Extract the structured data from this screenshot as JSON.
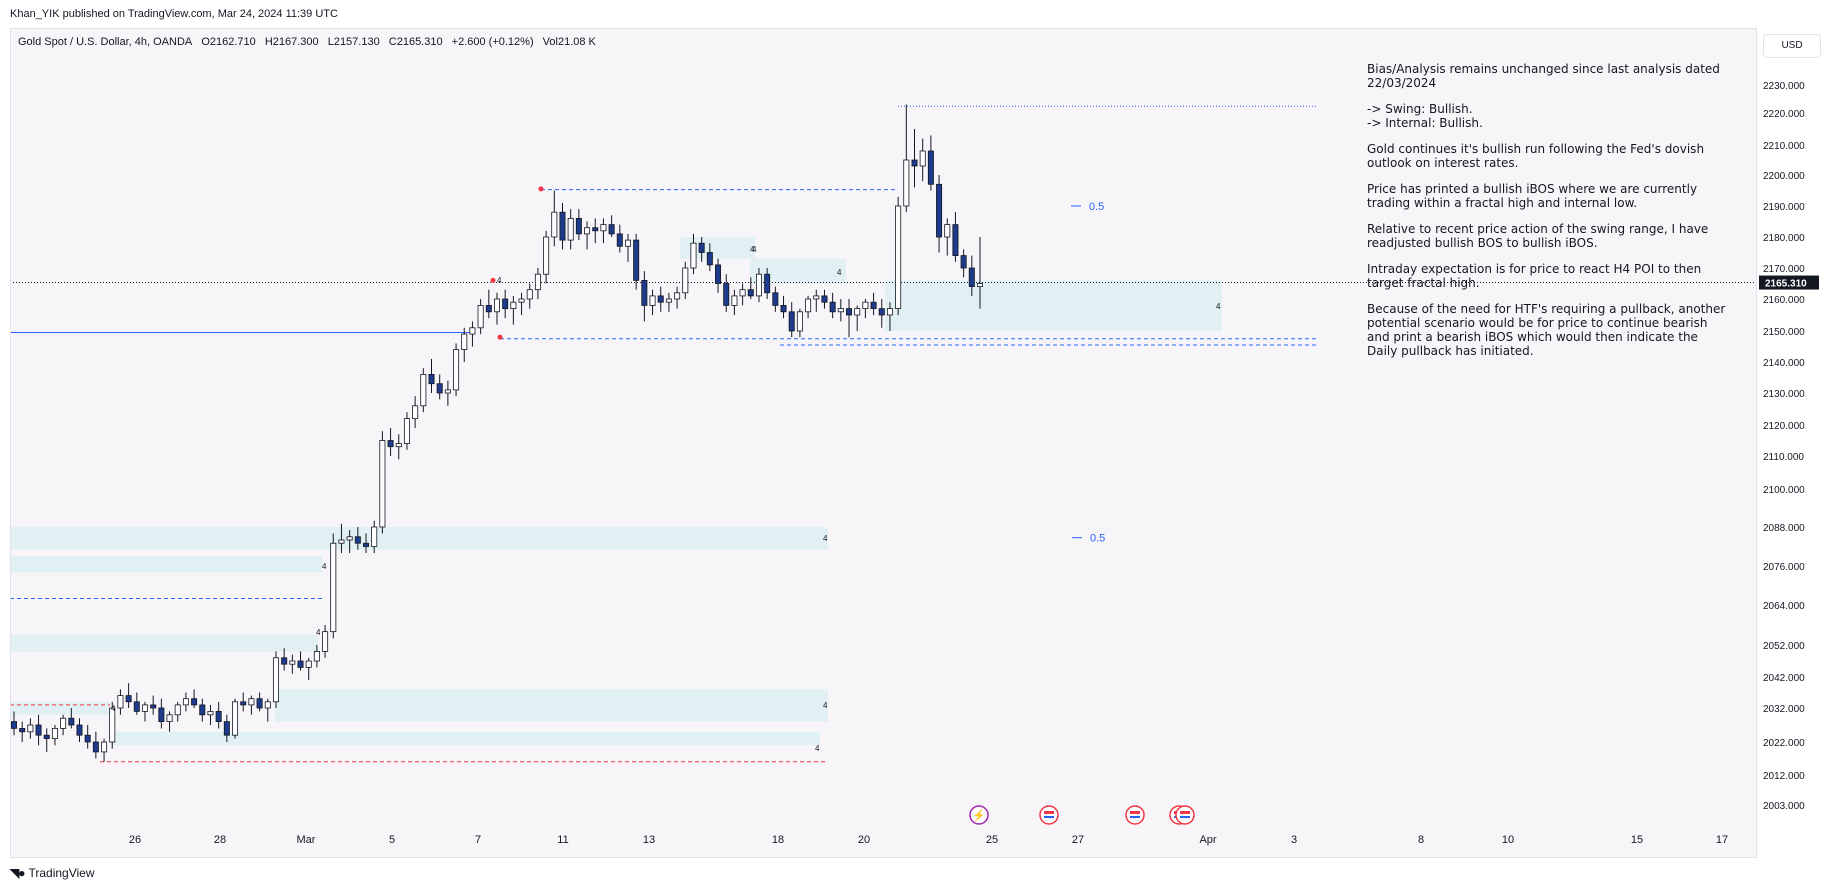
{
  "published": "Khan_YIK published on TradingView.com, Mar 24, 2024 11:39 UTC",
  "legend": {
    "symbol": "Gold Spot / U.S. Dollar, 4h, OANDA",
    "open": "O2162.710",
    "high": "H2167.300",
    "low": "L2157.130",
    "close": "C2165.310",
    "change": "+2.600 (+0.12%)",
    "volume": "Vol21.08 K"
  },
  "currency": "USD",
  "brand": "TradingView",
  "notes": [
    "Bias/Analysis remains unchanged since last analysis dated 22/03/2024",
    "-> Swing:  Bullish.\n-> Internal:  Bullish.",
    "Gold continues it's bullish run following the Fed's dovish outlook on interest rates.",
    "Price has printed a bullish iBOS where we are currently trading within a fractal high and internal low.",
    "Relative to recent price action of the swing range, I have readjusted bullish BOS to bullish iBOS.",
    "Intraday expectation is for price to react H4 POI to then target fractal high.",
    "Because of the need for HTF's requiring a pullback, another potential scenario would be for price to continue bearish and print a bearish iBOS which would then indicate the Daily pullback has initiated."
  ],
  "chart_data": {
    "type": "candlestick",
    "symbol": "XAUUSD",
    "timeframe": "4h",
    "current_price": "2165.310",
    "price_ticks": [
      "2230.000",
      "2220.000",
      "2210.000",
      "2200.000",
      "2190.000",
      "2180.000",
      "2170.000",
      "2160.000",
      "2150.000",
      "2140.000",
      "2130.000",
      "2120.000",
      "2110.000",
      "2100.000",
      "2088.000",
      "2076.000",
      "2064.000",
      "2052.000",
      "2042.000",
      "2032.000",
      "2022.000",
      "2012.000",
      "2003.000"
    ],
    "time_ticks": [
      "26",
      "28",
      "Mar",
      "5",
      "7",
      "11",
      "13",
      "18",
      "20",
      "25",
      "27",
      "Apr",
      "3",
      "8",
      "10",
      "15",
      "17"
    ],
    "fib_labels": [
      {
        "text": "0.5",
        "price": 2190
      },
      {
        "text": "0.5",
        "price": 2101
      }
    ],
    "zone_labels": [
      "4",
      "4",
      "4",
      "4",
      "4",
      "4",
      "4",
      "4",
      "4",
      "4",
      "4"
    ],
    "key_levels": [
      {
        "name": "ATH dotted",
        "price": 2222.4
      },
      {
        "name": "Fractal high dashed",
        "price": 2195.3
      },
      {
        "name": "Current price",
        "price": 2165.31
      },
      {
        "name": "Blue solid",
        "price": 2149.5
      },
      {
        "name": "Internal low dashed",
        "price": 2147.5
      },
      {
        "name": "Lower dashed",
        "price": 2145.5
      },
      {
        "name": "Mid dashed",
        "price": 2066
      },
      {
        "name": "Red dashed top",
        "price": 2033
      },
      {
        "name": "Red dashed bottom",
        "price": 2016
      }
    ],
    "candles": [
      [
        2028,
        2031,
        2024,
        2026
      ],
      [
        2026,
        2028,
        2022,
        2025
      ],
      [
        2025,
        2029,
        2023,
        2027
      ],
      [
        2027,
        2030,
        2021,
        2024
      ],
      [
        2024,
        2026,
        2019,
        2023
      ],
      [
        2023,
        2027,
        2021,
        2026
      ],
      [
        2026,
        2030,
        2024,
        2029
      ],
      [
        2029,
        2032,
        2026,
        2027
      ],
      [
        2027,
        2029,
        2022,
        2024
      ],
      [
        2024,
        2027,
        2020,
        2022
      ],
      [
        2022,
        2025,
        2017,
        2019
      ],
      [
        2019,
        2023,
        2016,
        2022
      ],
      [
        2022,
        2034,
        2020,
        2032
      ],
      [
        2032,
        2038,
        2030,
        2036
      ],
      [
        2036,
        2040,
        2032,
        2034
      ],
      [
        2034,
        2037,
        2030,
        2031
      ],
      [
        2031,
        2034,
        2028,
        2033
      ],
      [
        2033,
        2036,
        2030,
        2032
      ],
      [
        2032,
        2035,
        2026,
        2028
      ],
      [
        2028,
        2031,
        2025,
        2030
      ],
      [
        2030,
        2034,
        2028,
        2033
      ],
      [
        2033,
        2037,
        2031,
        2035
      ],
      [
        2035,
        2038,
        2032,
        2033
      ],
      [
        2033,
        2035,
        2028,
        2030
      ],
      [
        2030,
        2033,
        2027,
        2031
      ],
      [
        2031,
        2034,
        2026,
        2028
      ],
      [
        2028,
        2030,
        2022,
        2024
      ],
      [
        2024,
        2035,
        2023,
        2034
      ],
      [
        2034,
        2037,
        2031,
        2033
      ],
      [
        2033,
        2036,
        2030,
        2035
      ],
      [
        2035,
        2037,
        2031,
        2032
      ],
      [
        2032,
        2035,
        2028,
        2034
      ],
      [
        2034,
        2050,
        2032,
        2048
      ],
      [
        2048,
        2051,
        2044,
        2046
      ],
      [
        2046,
        2049,
        2043,
        2047
      ],
      [
        2047,
        2050,
        2044,
        2045
      ],
      [
        2045,
        2048,
        2041,
        2047
      ],
      [
        2047,
        2052,
        2045,
        2050
      ],
      [
        2050,
        2058,
        2048,
        2056
      ],
      [
        2056,
        2086,
        2054,
        2083
      ],
      [
        2083,
        2089,
        2080,
        2084
      ],
      [
        2084,
        2087,
        2080,
        2085
      ],
      [
        2085,
        2088,
        2081,
        2083
      ],
      [
        2083,
        2086,
        2080,
        2082
      ],
      [
        2082,
        2090,
        2080,
        2088
      ],
      [
        2088,
        2118,
        2086,
        2115
      ],
      [
        2115,
        2119,
        2110,
        2113
      ],
      [
        2113,
        2117,
        2109,
        2114
      ],
      [
        2114,
        2124,
        2112,
        2122
      ],
      [
        2122,
        2129,
        2119,
        2126
      ],
      [
        2126,
        2138,
        2124,
        2136
      ],
      [
        2136,
        2141,
        2130,
        2133
      ],
      [
        2133,
        2136,
        2128,
        2130
      ],
      [
        2130,
        2134,
        2126,
        2131
      ],
      [
        2131,
        2146,
        2129,
        2144
      ],
      [
        2144,
        2151,
        2140,
        2149
      ],
      [
        2149,
        2153,
        2145,
        2151
      ],
      [
        2151,
        2160,
        2149,
        2158
      ],
      [
        2158,
        2163,
        2154,
        2156
      ],
      [
        2156,
        2162,
        2152,
        2160
      ],
      [
        2160,
        2163,
        2154,
        2157
      ],
      [
        2157,
        2161,
        2152,
        2159
      ],
      [
        2159,
        2162,
        2155,
        2160
      ],
      [
        2160,
        2165,
        2157,
        2163
      ],
      [
        2163,
        2170,
        2160,
        2168
      ],
      [
        2168,
        2182,
        2165,
        2180
      ],
      [
        2180,
        2195,
        2177,
        2188
      ],
      [
        2188,
        2191,
        2176,
        2179
      ],
      [
        2179,
        2189,
        2176,
        2186
      ],
      [
        2186,
        2189,
        2179,
        2181
      ],
      [
        2181,
        2185,
        2176,
        2183
      ],
      [
        2183,
        2186,
        2178,
        2182
      ],
      [
        2182,
        2186,
        2178,
        2184
      ],
      [
        2184,
        2187,
        2180,
        2181
      ],
      [
        2181,
        2184,
        2175,
        2177
      ],
      [
        2177,
        2181,
        2172,
        2179
      ],
      [
        2179,
        2181,
        2163,
        2166
      ],
      [
        2166,
        2169,
        2153,
        2158
      ],
      [
        2158,
        2163,
        2155,
        2161
      ],
      [
        2161,
        2164,
        2156,
        2159
      ],
      [
        2159,
        2162,
        2156,
        2160
      ],
      [
        2160,
        2164,
        2157,
        2162
      ],
      [
        2162,
        2172,
        2160,
        2170
      ],
      [
        2170,
        2181,
        2168,
        2178
      ],
      [
        2178,
        2180,
        2172,
        2175
      ],
      [
        2175,
        2178,
        2169,
        2171
      ],
      [
        2171,
        2173,
        2162,
        2165
      ],
      [
        2165,
        2168,
        2156,
        2158
      ],
      [
        2158,
        2163,
        2155,
        2161
      ],
      [
        2161,
        2165,
        2158,
        2163
      ],
      [
        2163,
        2167,
        2160,
        2161
      ],
      [
        2161,
        2170,
        2159,
        2168
      ],
      [
        2168,
        2170,
        2160,
        2162
      ],
      [
        2162,
        2164,
        2156,
        2158
      ],
      [
        2158,
        2161,
        2154,
        2156
      ],
      [
        2156,
        2159,
        2148,
        2150
      ],
      [
        2150,
        2157,
        2148,
        2156
      ],
      [
        2156,
        2161,
        2154,
        2160
      ],
      [
        2160,
        2163,
        2156,
        2161
      ],
      [
        2161,
        2163,
        2157,
        2159
      ],
      [
        2159,
        2162,
        2154,
        2156
      ],
      [
        2156,
        2160,
        2153,
        2157
      ],
      [
        2157,
        2160,
        2148,
        2155
      ],
      [
        2155,
        2158,
        2150,
        2157
      ],
      [
        2157,
        2160,
        2154,
        2159
      ],
      [
        2159,
        2162,
        2155,
        2157
      ],
      [
        2157,
        2160,
        2151,
        2155
      ],
      [
        2155,
        2159,
        2150,
        2157
      ],
      [
        2157,
        2193,
        2155,
        2190
      ],
      [
        2190,
        2223,
        2188,
        2205
      ],
      [
        2205,
        2215,
        2196,
        2203
      ],
      [
        2203,
        2212,
        2198,
        2208
      ],
      [
        2208,
        2213,
        2195,
        2197
      ],
      [
        2197,
        2200,
        2175,
        2180
      ],
      [
        2180,
        2186,
        2174,
        2184
      ],
      [
        2184,
        2188,
        2172,
        2174
      ],
      [
        2174,
        2176,
        2167,
        2170
      ],
      [
        2170,
        2174,
        2161,
        2164
      ],
      [
        2164,
        2180,
        2157,
        2165
      ]
    ]
  }
}
